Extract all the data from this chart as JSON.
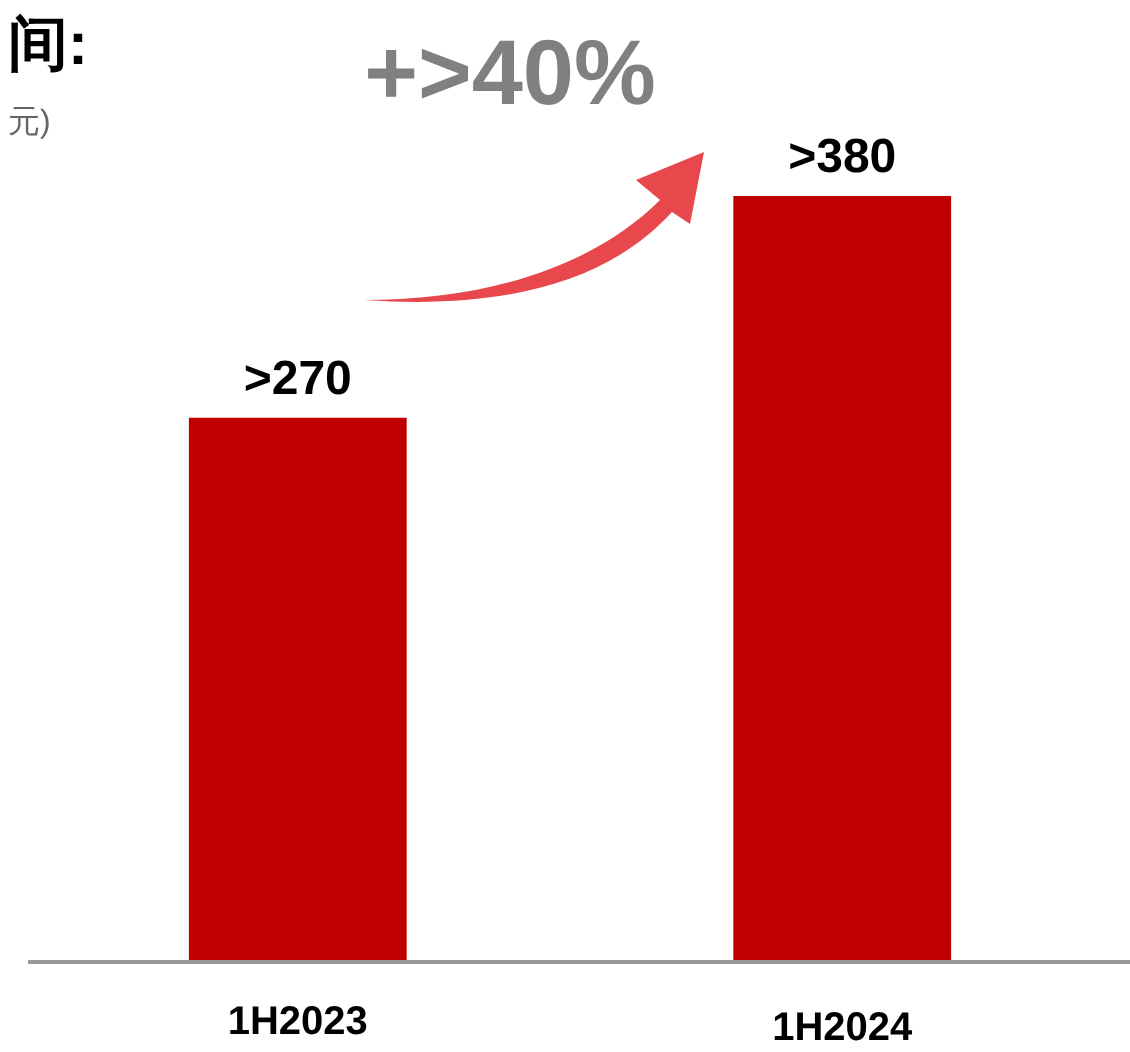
{
  "chart_data": {
    "type": "bar",
    "title": "间:",
    "subtitle": "元)",
    "categories": [
      "1H2023",
      "1H2024"
    ],
    "values": [
      270,
      380
    ],
    "value_labels": [
      ">270",
      ">380"
    ],
    "color": "#c00000",
    "annotations": [
      "+>40%"
    ]
  }
}
